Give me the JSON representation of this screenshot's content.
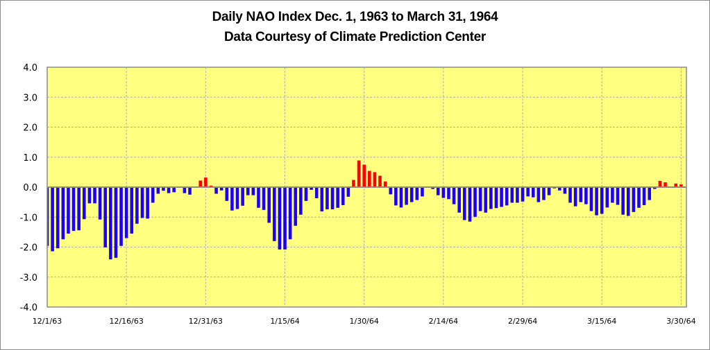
{
  "chart_data": {
    "type": "bar",
    "title": "Daily NAO Index Dec. 1, 1963 to March 31, 1964",
    "subtitle": "Data Courtesy of Climate Prediction Center",
    "xlabel": "",
    "ylabel": "",
    "ylim": [
      -4.0,
      4.0
    ],
    "y_ticks": [
      "4.0",
      "3.0",
      "2.0",
      "1.0",
      "0.0",
      "-1.0",
      "-2.0",
      "-3.0",
      "-4.0"
    ],
    "y_tick_values": [
      4,
      3,
      2,
      1,
      0,
      -1,
      -2,
      -3,
      -4
    ],
    "x_ticks": [
      {
        "label": "12/1/63",
        "day_index": 0
      },
      {
        "label": "12/16/63",
        "day_index": 15
      },
      {
        "label": "12/31/63",
        "day_index": 30
      },
      {
        "label": "1/15/64",
        "day_index": 45
      },
      {
        "label": "1/30/64",
        "day_index": 60
      },
      {
        "label": "2/14/64",
        "day_index": 75
      },
      {
        "label": "2/29/64",
        "day_index": 90
      },
      {
        "label": "3/15/64",
        "day_index": 105
      },
      {
        "label": "3/30/64",
        "day_index": 120
      }
    ],
    "start_date": "12/1/63",
    "end_date": "3/31/64",
    "grid": true,
    "colors": {
      "positive": "#ff0000",
      "negative": "#1a00ff",
      "plot_background": "#ffff80",
      "gridline": "#b0b0b0",
      "axis": "#8c8c8c"
    },
    "values": [
      -1.96,
      -2.14,
      -2.04,
      -1.74,
      -1.55,
      -1.46,
      -1.44,
      -1.07,
      -0.54,
      -0.54,
      -1.08,
      -2.01,
      -2.41,
      -2.36,
      -1.96,
      -1.7,
      -1.55,
      -1.22,
      -1.03,
      -1.05,
      -0.52,
      -0.22,
      -0.12,
      -0.2,
      -0.17,
      0.0,
      -0.2,
      -0.25,
      0.0,
      0.22,
      0.32,
      0.05,
      -0.22,
      -0.11,
      -0.46,
      -0.78,
      -0.73,
      -0.62,
      -0.27,
      -0.27,
      -0.69,
      -0.76,
      -1.19,
      -1.8,
      -2.08,
      -2.08,
      -1.74,
      -1.29,
      -0.92,
      -0.46,
      -0.09,
      -0.37,
      -0.81,
      -0.74,
      -0.74,
      -0.69,
      -0.6,
      -0.32,
      0.24,
      0.89,
      0.75,
      0.54,
      0.5,
      0.38,
      0.19,
      -0.24,
      -0.61,
      -0.68,
      -0.59,
      -0.5,
      -0.43,
      -0.31,
      0.0,
      -0.06,
      -0.27,
      -0.36,
      -0.4,
      -0.57,
      -0.85,
      -1.1,
      -1.15,
      -0.99,
      -0.8,
      -0.85,
      -0.73,
      -0.7,
      -0.66,
      -0.61,
      -0.52,
      -0.52,
      -0.48,
      -0.31,
      -0.34,
      -0.5,
      -0.43,
      -0.27,
      -0.04,
      -0.11,
      -0.22,
      -0.52,
      -0.64,
      -0.5,
      -0.57,
      -0.8,
      -0.94,
      -0.89,
      -0.68,
      -0.52,
      -0.59,
      -0.92,
      -0.96,
      -0.83,
      -0.69,
      -0.6,
      -0.43,
      -0.06,
      0.21,
      0.16,
      0.0,
      0.12,
      0.09,
      0.0
    ]
  }
}
